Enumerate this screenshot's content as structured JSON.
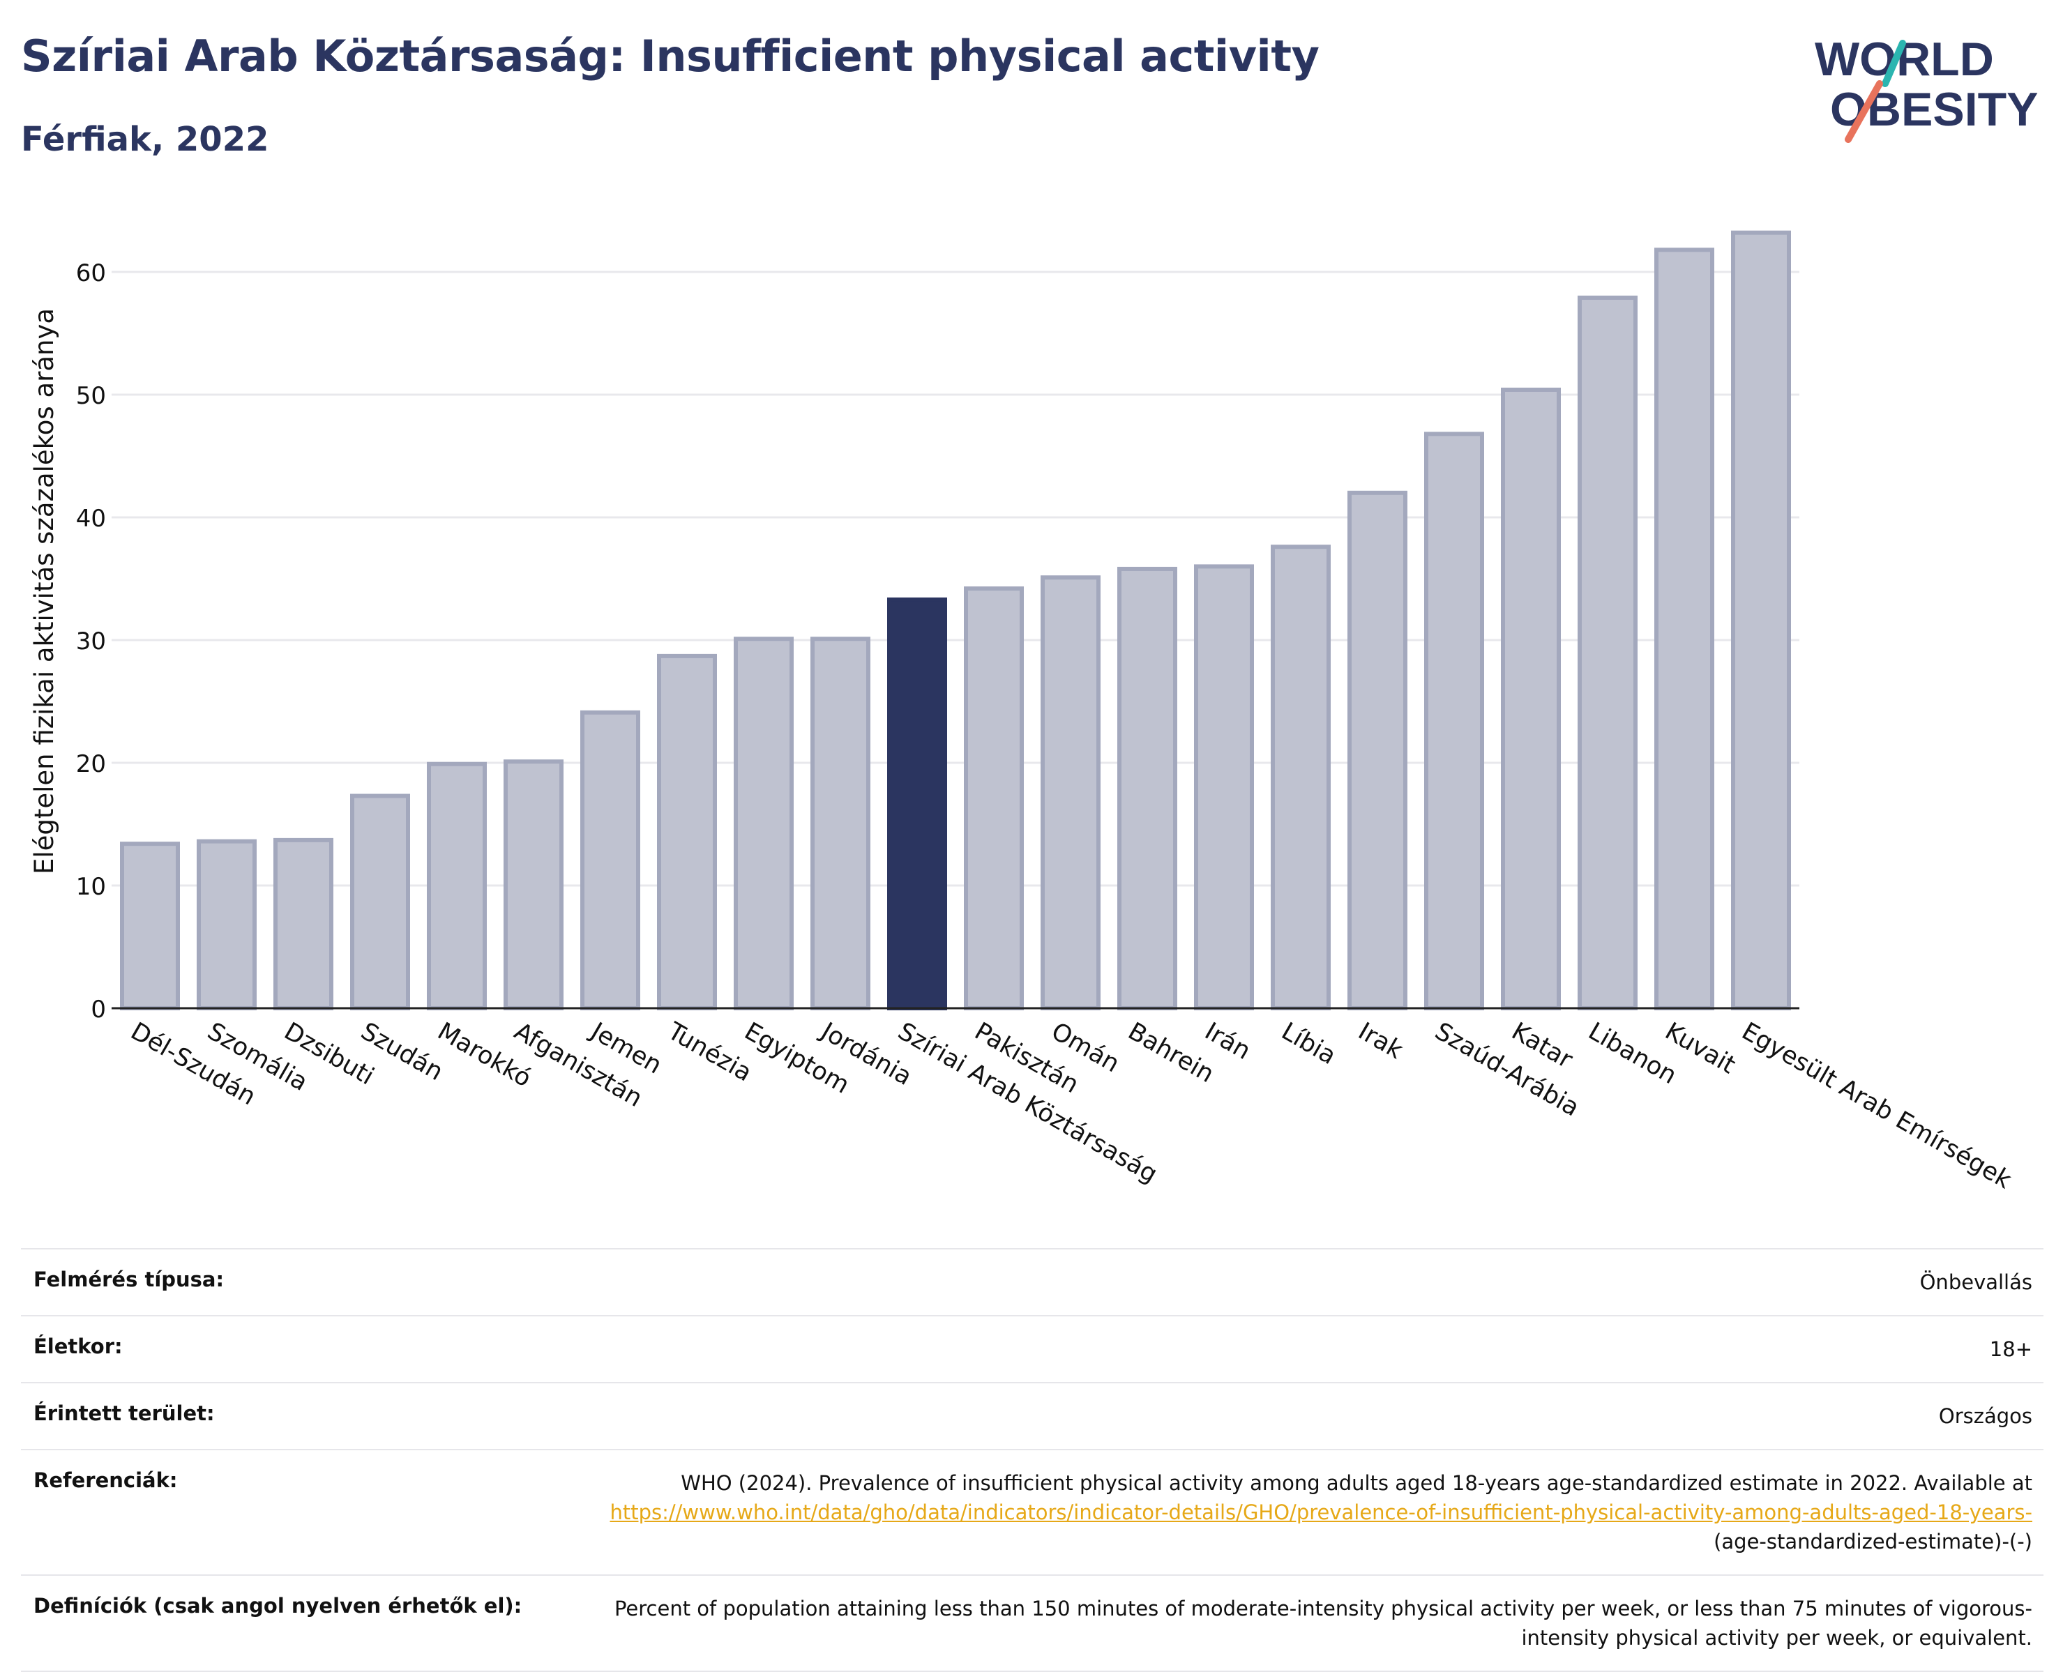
{
  "title": "Szíriai Arab Köztársaság: Insufficient physical activity",
  "subtitle": "Férfiak, 2022",
  "logo": {
    "line1": "WORLD",
    "line2": "OBESITY"
  },
  "colors": {
    "bar_default": "#bfc2d0",
    "bar_default_edge": "#a3a8bd",
    "bar_highlight": "#2b3560",
    "title": "#2b3560",
    "link": "#e6a817",
    "logo_teal": "#2bb5b0",
    "logo_coral": "#e8735c"
  },
  "chart_data": {
    "type": "bar",
    "title": "Szíriai Arab Köztársaság: Insufficient physical activity",
    "subtitle": "Férfiak, 2022",
    "xlabel": "",
    "ylabel": "Elégtelen fizikai aktivitás százalékos aránya",
    "ylim": [
      0,
      65
    ],
    "yticks": [
      0,
      10,
      20,
      30,
      40,
      50,
      60
    ],
    "grid": true,
    "highlight": "Szíriai Arab Köztársaság",
    "categories": [
      "Dél-Szudán",
      "Szomália",
      "Dzsibuti",
      "Szudán",
      "Marokkó",
      "Afganisztán",
      "Jemen",
      "Tunézia",
      "Egyiptom",
      "Jordánia",
      "Szíriai Arab Köztársaság",
      "Pakisztán",
      "Omán",
      "Bahrein",
      "Irán",
      "Líbia",
      "Irak",
      "Szaúd-Arábia",
      "Katar",
      "Libanon",
      "Kuvait",
      "Egyesült Arab Emírségek"
    ],
    "values": [
      13.4,
      13.6,
      13.7,
      17.3,
      19.9,
      20.1,
      24.1,
      28.7,
      30.1,
      30.1,
      33.3,
      34.2,
      35.1,
      35.8,
      36.0,
      37.6,
      42.0,
      46.8,
      50.4,
      57.9,
      61.8,
      63.2
    ]
  },
  "info": {
    "survey_label": "Felmérés típusa:",
    "survey_value": "Önbevallás",
    "age_label": "Életkor:",
    "age_value": "18+",
    "area_label": "Érintett terület:",
    "area_value": "Országos",
    "ref_label": "Referenciák:",
    "ref_text": "WHO (2024). Prevalence of insufficient physical activity among adults aged 18-years age-standardized estimate in 2022. Available at",
    "ref_link": "https://www.who.int/data/gho/data/indicators/indicator-details/GHO/prevalence-of-insufficient-physical-activity-among-adults-aged-18-years-",
    "ref_tail": "(age-standardized-estimate)-(-)",
    "def_label": "Definíciók (csak angol nyelven érhetők el):",
    "def_value": "Percent of population attaining less than 150 minutes of moderate-intensity physical activity per week, or less than 75 minutes of vigorous-intensity physical activity per week, or equivalent."
  }
}
